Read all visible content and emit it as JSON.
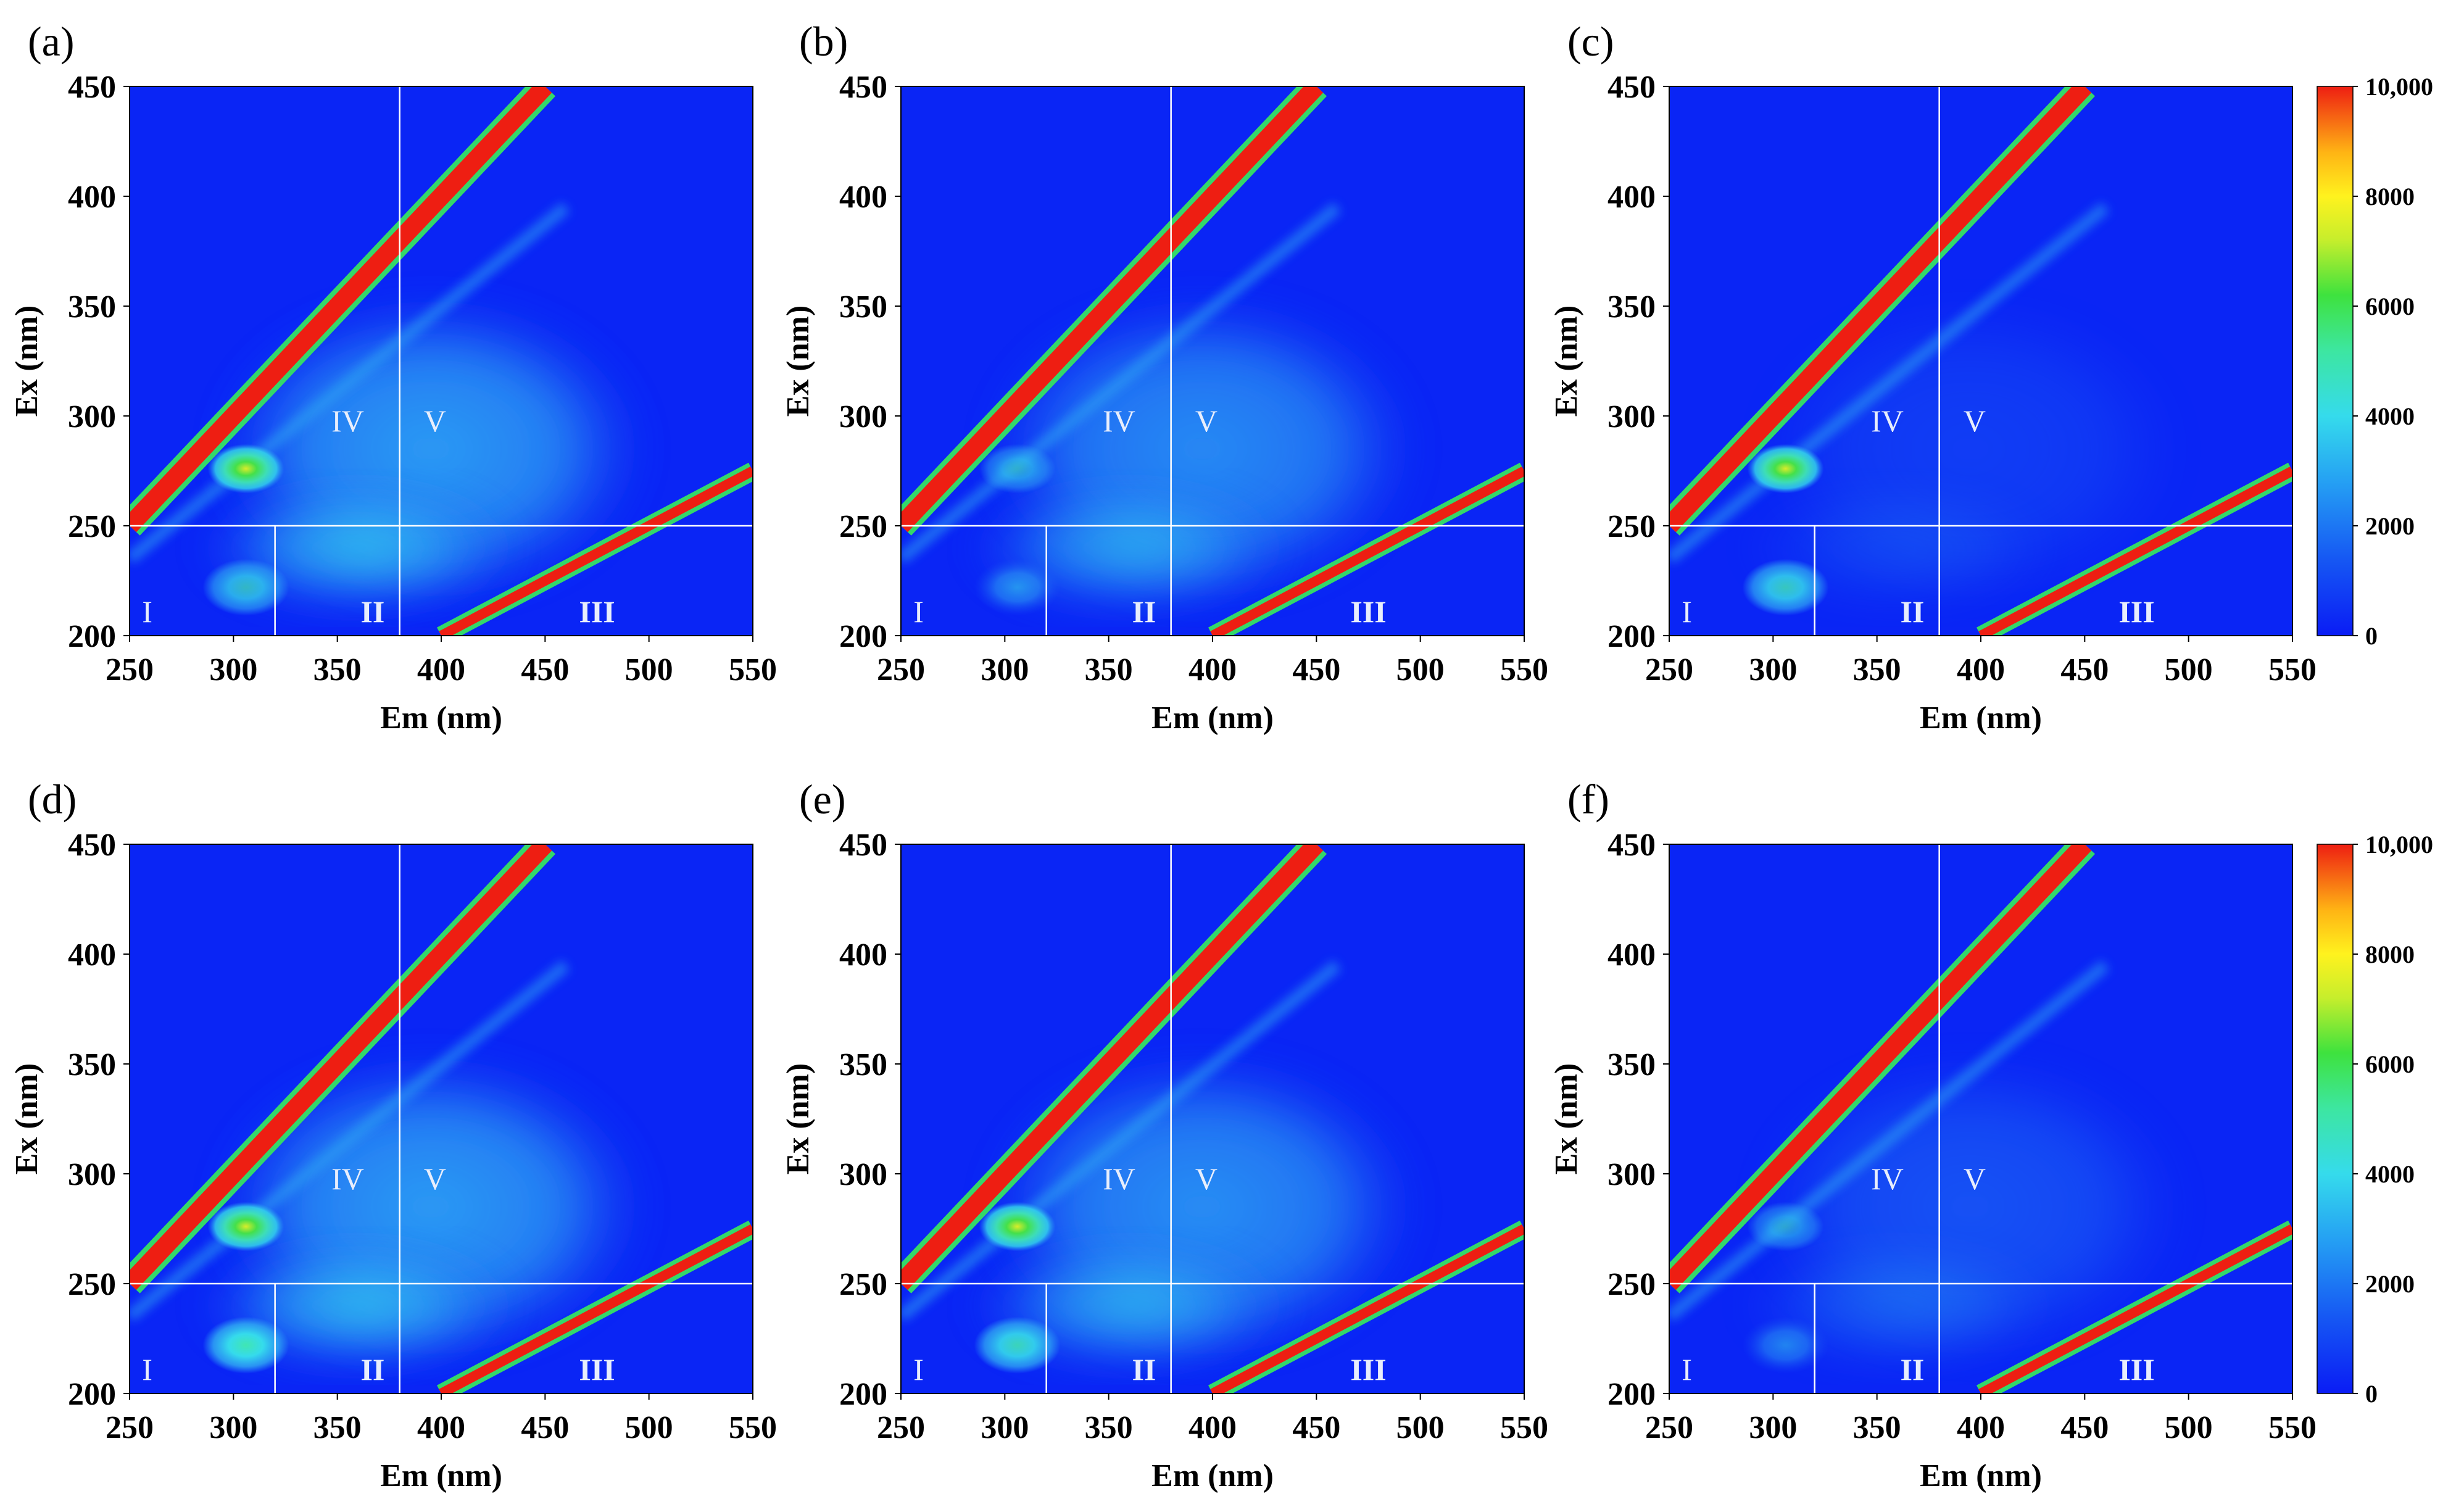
{
  "figure": {
    "colorbar_ticks": [
      "10,000",
      "8000",
      "6000",
      "4000",
      "2000",
      "0"
    ],
    "colors": {
      "background": "#0a25f5",
      "c1": "#1b5cf2",
      "c2": "#2fa7f3",
      "c3": "#35dbec",
      "c4": "#40e6b2",
      "c5": "#44e04a",
      "peak": "#d9ec2a",
      "scatter_red": "#ee1e12",
      "scatter_edge": "#34d86a",
      "divider": "#ffffff"
    }
  },
  "chart_data": [
    {
      "panel_label": "(a)",
      "type": "heatmap",
      "xlabel": "Em (nm)",
      "ylabel": "Ex (nm)",
      "xlim": [
        250,
        550
      ],
      "ylim": [
        200,
        450
      ],
      "xticks": [
        "250",
        "300",
        "350",
        "400",
        "450",
        "500",
        "550"
      ],
      "yticks": [
        "200",
        "250",
        "300",
        "350",
        "400",
        "450"
      ],
      "colorbar": false,
      "region_labels": [
        "I",
        "II",
        "III",
        "IV",
        "V"
      ],
      "dividers": {
        "ex": 250,
        "em_upper": 380,
        "em_lower_I": 320,
        "em_lower_II": 380
      },
      "fluorescence_levels": {
        "peak_tyr": 5200,
        "peak_lower": 3200,
        "humic": 2900
      }
    },
    {
      "panel_label": "(b)",
      "type": "heatmap",
      "xlabel": "Em (nm)",
      "ylabel": "Ex (nm)",
      "xlim": [
        250,
        550
      ],
      "ylim": [
        200,
        450
      ],
      "xticks": [
        "250",
        "300",
        "350",
        "400",
        "450",
        "500",
        "550"
      ],
      "yticks": [
        "200",
        "250",
        "300",
        "350",
        "400",
        "450"
      ],
      "colorbar": false,
      "region_labels": [
        "I",
        "II",
        "III",
        "IV",
        "V"
      ],
      "dividers": {
        "ex": 250,
        "em_upper": 380,
        "em_lower_I": 320,
        "em_lower_II": 380
      },
      "fluorescence_levels": {
        "peak_tyr": 2500,
        "peak_lower": 2500,
        "humic": 2500
      }
    },
    {
      "panel_label": "(c)",
      "type": "heatmap",
      "xlabel": "Em (nm)",
      "ylabel": "Ex (nm)",
      "xlim": [
        250,
        550
      ],
      "ylim": [
        200,
        450
      ],
      "xticks": [
        "250",
        "300",
        "350",
        "400",
        "450",
        "500",
        "550"
      ],
      "yticks": [
        "200",
        "250",
        "300",
        "350",
        "400",
        "450"
      ],
      "colorbar": true,
      "colorbar_range": [
        0,
        10000
      ],
      "region_labels": [
        "I",
        "II",
        "III",
        "IV",
        "V"
      ],
      "dividers": {
        "ex": 250,
        "em_upper": 380,
        "em_lower_I": 320,
        "em_lower_II": 380
      },
      "fluorescence_levels": {
        "peak_tyr": 6200,
        "peak_lower": 3800,
        "humic": 600
      }
    },
    {
      "panel_label": "(d)",
      "type": "heatmap",
      "xlabel": "Em (nm)",
      "ylabel": "Ex (nm)",
      "xlim": [
        250,
        550
      ],
      "ylim": [
        200,
        450
      ],
      "xticks": [
        "250",
        "300",
        "350",
        "400",
        "450",
        "500",
        "550"
      ],
      "yticks": [
        "200",
        "250",
        "300",
        "350",
        "400",
        "450"
      ],
      "colorbar": false,
      "region_labels": [
        "I",
        "II",
        "III",
        "IV",
        "V"
      ],
      "dividers": {
        "ex": 250,
        "em_upper": 380,
        "em_lower_I": 320,
        "em_lower_II": 380
      },
      "fluorescence_levels": {
        "peak_tyr": 6800,
        "peak_lower": 5000,
        "humic": 2900
      }
    },
    {
      "panel_label": "(e)",
      "type": "heatmap",
      "xlabel": "Em (nm)",
      "ylabel": "Ex (nm)",
      "xlim": [
        250,
        550
      ],
      "ylim": [
        200,
        450
      ],
      "xticks": [
        "250",
        "300",
        "350",
        "400",
        "450",
        "500",
        "550"
      ],
      "yticks": [
        "200",
        "250",
        "300",
        "350",
        "400",
        "450"
      ],
      "colorbar": false,
      "region_labels": [
        "I",
        "II",
        "III",
        "IV",
        "V"
      ],
      "dividers": {
        "ex": 250,
        "em_upper": 380,
        "em_lower_I": 320,
        "em_lower_II": 380
      },
      "fluorescence_levels": {
        "peak_tyr": 6000,
        "peak_lower": 4200,
        "humic": 2600
      }
    },
    {
      "panel_label": "(f)",
      "type": "heatmap",
      "xlabel": "Em (nm)",
      "ylabel": "Ex (nm)",
      "xlim": [
        250,
        550
      ],
      "ylim": [
        200,
        450
      ],
      "xticks": [
        "250",
        "300",
        "350",
        "400",
        "450",
        "500",
        "550"
      ],
      "yticks": [
        "200",
        "250",
        "300",
        "350",
        "400",
        "450"
      ],
      "colorbar": true,
      "colorbar_range": [
        0,
        10000
      ],
      "region_labels": [
        "I",
        "II",
        "III",
        "IV",
        "V"
      ],
      "dividers": {
        "ex": 250,
        "em_upper": 380,
        "em_lower_I": 320,
        "em_lower_II": 380
      },
      "fluorescence_levels": {
        "peak_tyr": 2200,
        "peak_lower": 2000,
        "humic": 1100
      }
    }
  ]
}
